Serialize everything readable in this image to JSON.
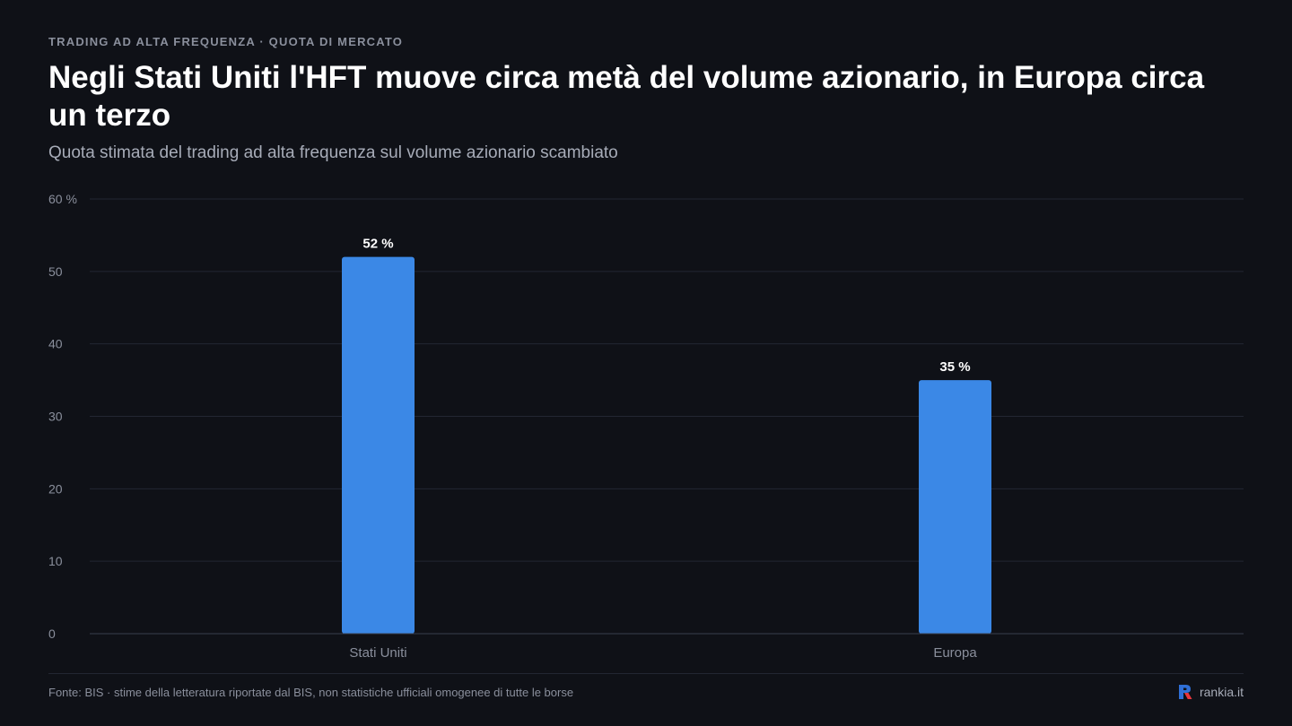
{
  "header": {
    "eyebrow": "TRADING AD ALTA FREQUENZA · QUOTA DI MERCATO",
    "title": "Negli Stati Uniti l'HFT muove circa metà del volume azionario, in Europa circa un terzo",
    "subtitle": "Quota stimata del trading ad alta frequenza sul volume azionario scambiato"
  },
  "footer": {
    "source": "Fonte: BIS · stime della letteratura riportate dal BIS, non statistiche ufficiali omogenee di tutte le borse",
    "brand": "rankia.it"
  },
  "colors": {
    "background": "#0f1117",
    "bar": "#3b88e6",
    "grid": "#232733",
    "axis_text": "#8a8f9c",
    "label_text": "#ffffff",
    "brand_red": "#e8363d",
    "brand_blue": "#2f6fd6"
  },
  "icons": {
    "brand": "rankia-logo-icon"
  },
  "chart_data": {
    "type": "bar",
    "categories": [
      "Stati Uniti",
      "Europa"
    ],
    "values": [
      52,
      35
    ],
    "value_labels": [
      "52 %",
      "35 %"
    ],
    "y_tick_labels": [
      "0",
      "10",
      "20",
      "30",
      "40",
      "50",
      "60 %"
    ],
    "ylim": [
      0,
      60
    ],
    "y_ticks": [
      0,
      10,
      20,
      30,
      40,
      50,
      60
    ],
    "grid": true,
    "legend": "none"
  }
}
